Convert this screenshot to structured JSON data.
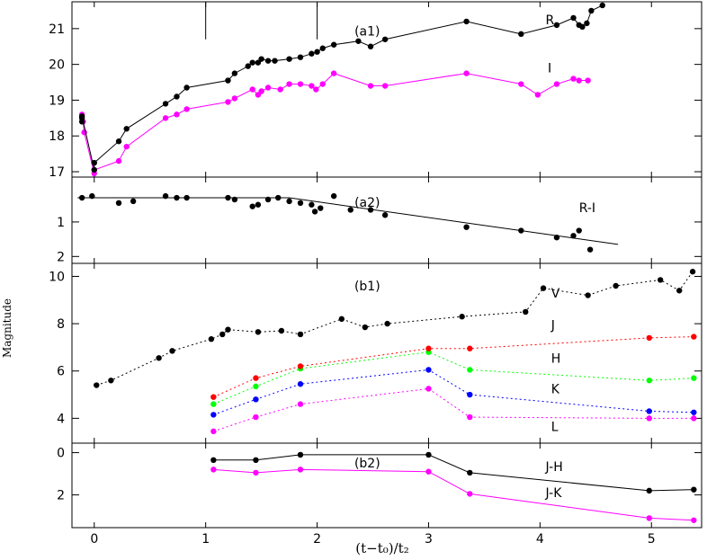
{
  "x_axis": {
    "label": "(t−t₀)/t₂",
    "ticks": [
      0,
      1,
      2,
      3,
      4,
      5
    ],
    "range": [
      -0.2,
      5.45
    ]
  },
  "y_axis_label": "Magnitude",
  "chart_data": [
    {
      "panel": "a1",
      "type": "line",
      "title": "(a1)",
      "ylim": [
        21.75,
        16.85
      ],
      "y_ticks": [
        17,
        18,
        19,
        20,
        21
      ],
      "vertical_markers": [
        {
          "x": 1.0,
          "y_from": 21.75,
          "y_to": 20.7
        },
        {
          "x": 2.0,
          "y_from": 21.75,
          "y_to": 20.7
        }
      ],
      "series": [
        {
          "name": "I",
          "color": "#ff00ff",
          "style": "solid",
          "label_at": [
            4.07,
            19.9
          ],
          "x": [
            -0.11,
            -0.1,
            -0.09,
            0.0,
            0.0,
            0.22,
            0.29,
            0.64,
            0.74,
            0.83,
            1.2,
            1.26,
            1.42,
            1.47,
            1.5,
            1.56,
            1.67,
            1.75,
            1.85,
            1.95,
            1.99,
            2.05,
            2.15,
            2.48,
            2.61,
            3.34,
            3.83,
            3.98,
            4.15,
            4.3,
            4.35,
            4.43
          ],
          "y": [
            18.6,
            18.4,
            18.1,
            16.95,
            17.05,
            17.3,
            17.7,
            18.5,
            18.6,
            18.75,
            18.95,
            19.05,
            19.3,
            19.15,
            19.25,
            19.35,
            19.3,
            19.45,
            19.45,
            19.4,
            19.3,
            19.45,
            19.75,
            19.4,
            19.4,
            19.75,
            19.45,
            19.15,
            19.45,
            19.6,
            19.55,
            19.55
          ]
        },
        {
          "name": "R",
          "color": "#000000",
          "style": "solid",
          "label_at": [
            4.05,
            21.25
          ],
          "x": [
            -0.11,
            -0.11,
            -0.11,
            0.0,
            0.0,
            0.22,
            0.29,
            0.64,
            0.74,
            0.83,
            1.2,
            1.26,
            1.38,
            1.42,
            1.47,
            1.5,
            1.56,
            1.62,
            1.75,
            1.85,
            1.95,
            2.0,
            2.05,
            2.15,
            2.37,
            2.48,
            2.61,
            3.34,
            3.83,
            4.15,
            4.3,
            4.35,
            4.38,
            4.42,
            4.46,
            4.56
          ],
          "y": [
            18.4,
            18.5,
            18.55,
            17.05,
            17.25,
            17.85,
            18.2,
            18.9,
            19.1,
            19.35,
            19.55,
            19.75,
            19.95,
            20.05,
            20.05,
            20.15,
            20.1,
            20.1,
            20.15,
            20.2,
            20.3,
            20.35,
            20.45,
            20.55,
            20.65,
            20.5,
            20.7,
            21.2,
            20.85,
            21.1,
            21.3,
            21.1,
            21.05,
            21.15,
            21.5,
            21.65
          ]
        }
      ]
    },
    {
      "panel": "a2",
      "type": "scatter",
      "title": "(a2)",
      "ylim": [
        -0.3,
        2.2
      ],
      "y_ticks": [
        1,
        2
      ],
      "fit_line": {
        "x": [
          -0.15,
          1.5,
          1.75,
          4.7
        ],
        "y": [
          0.3,
          0.3,
          0.3,
          1.65
        ],
        "color": "#000000"
      },
      "series": [
        {
          "name": "R-I",
          "color": "#000000",
          "label_at": [
            4.35,
            0.58
          ],
          "x": [
            -0.11,
            -0.02,
            0.22,
            0.35,
            0.64,
            0.74,
            0.83,
            1.2,
            1.26,
            1.42,
            1.47,
            1.56,
            1.65,
            1.75,
            1.85,
            1.95,
            1.98,
            2.03,
            2.15,
            2.3,
            2.48,
            2.61,
            3.34,
            3.83,
            4.15,
            4.3,
            4.35,
            4.45
          ],
          "y": [
            0.3,
            0.25,
            0.45,
            0.4,
            0.25,
            0.3,
            0.3,
            0.3,
            0.35,
            0.55,
            0.5,
            0.35,
            0.3,
            0.4,
            0.45,
            0.5,
            0.7,
            0.6,
            0.25,
            0.65,
            0.65,
            0.8,
            1.15,
            1.25,
            1.45,
            1.4,
            1.25,
            1.8
          ]
        }
      ]
    },
    {
      "panel": "b1",
      "type": "line",
      "title": "(b1)",
      "ylim": [
        10.55,
        2.95
      ],
      "y_ticks": [
        4,
        6,
        8,
        10
      ],
      "series": [
        {
          "name": "L",
          "color": "#ff00ff",
          "style": "dotted",
          "label_at": [
            4.1,
            3.65
          ],
          "x": [
            1.07,
            1.45,
            1.85,
            3.0,
            3.37,
            4.98,
            5.38
          ],
          "y": [
            3.45,
            4.05,
            4.6,
            5.25,
            4.05,
            4.0,
            4.0
          ]
        },
        {
          "name": "K",
          "color": "#0000ff",
          "style": "dotted",
          "label_at": [
            4.1,
            5.25
          ],
          "x": [
            1.07,
            1.45,
            1.85,
            3.0,
            3.37,
            4.98,
            5.38
          ],
          "y": [
            4.15,
            4.8,
            5.45,
            6.05,
            5.0,
            4.3,
            4.25
          ]
        },
        {
          "name": "H",
          "color": "#00ff00",
          "style": "dotted",
          "label_at": [
            4.1,
            6.55
          ],
          "x": [
            1.07,
            1.45,
            1.85,
            3.0,
            3.37,
            4.98,
            5.38
          ],
          "y": [
            4.6,
            5.35,
            6.1,
            6.8,
            6.05,
            5.6,
            5.7
          ]
        },
        {
          "name": "J",
          "color": "#ff0000",
          "style": "dotted",
          "label_at": [
            4.1,
            7.95
          ],
          "x": [
            1.07,
            1.45,
            1.85,
            3.0,
            3.37,
            4.98,
            5.38
          ],
          "y": [
            4.9,
            5.7,
            6.2,
            6.95,
            6.95,
            7.4,
            7.45
          ]
        },
        {
          "name": "V",
          "color": "#000000",
          "style": "dotted",
          "label_at": [
            4.1,
            9.3
          ],
          "x": [
            0.02,
            0.15,
            0.58,
            0.7,
            1.05,
            1.15,
            1.2,
            1.47,
            1.68,
            1.85,
            2.22,
            2.43,
            2.63,
            3.3,
            3.87,
            4.03,
            4.43,
            4.68,
            5.08,
            5.25,
            5.37
          ],
          "y": [
            5.4,
            5.6,
            6.55,
            6.85,
            7.35,
            7.55,
            7.75,
            7.65,
            7.7,
            7.55,
            8.2,
            7.85,
            8.0,
            8.3,
            8.5,
            9.5,
            9.2,
            9.6,
            9.85,
            9.4,
            10.2
          ]
        }
      ]
    },
    {
      "panel": "b2",
      "type": "line",
      "title": "(b2)",
      "ylim": [
        -0.45,
        3.55
      ],
      "y_ticks": [
        0,
        2
      ],
      "series": [
        {
          "name": "J-K",
          "color": "#ff00ff",
          "style": "solid",
          "label_at": [
            4.05,
            1.9
          ],
          "x": [
            1.07,
            1.45,
            1.85,
            3.0,
            3.37,
            4.98,
            5.38
          ],
          "y": [
            0.8,
            0.95,
            0.8,
            0.9,
            1.95,
            3.1,
            3.2
          ]
        },
        {
          "name": "J-H",
          "color": "#000000",
          "style": "solid",
          "label_at": [
            4.05,
            0.65
          ],
          "x": [
            1.07,
            1.45,
            1.85,
            3.0,
            3.37,
            4.98,
            5.38
          ],
          "y": [
            0.35,
            0.35,
            0.1,
            0.1,
            0.95,
            1.8,
            1.75
          ]
        }
      ]
    }
  ]
}
